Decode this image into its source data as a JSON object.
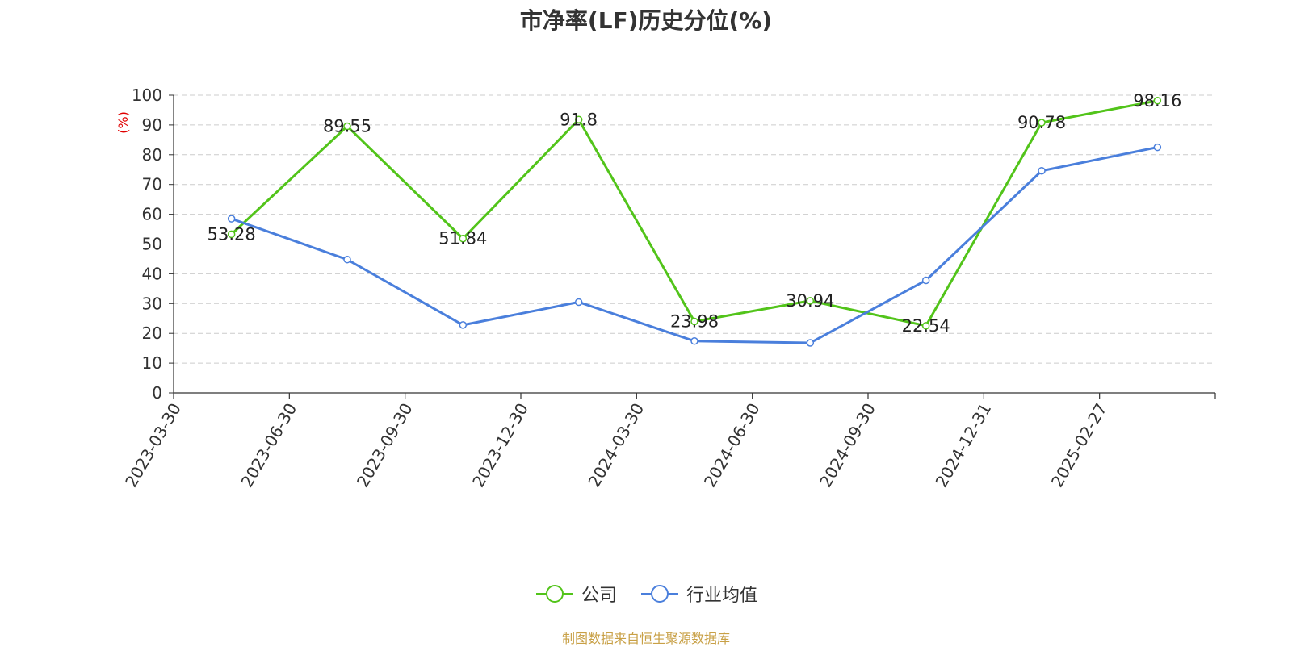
{
  "chart_data": {
    "type": "line",
    "title": "市净率(LF)历史分位(%)",
    "ylabel": "(%)",
    "ylim": [
      0,
      100
    ],
    "yticks": [
      0,
      10,
      20,
      30,
      40,
      50,
      60,
      70,
      80,
      90,
      100
    ],
    "categories": [
      "2023-03-30",
      "2023-06-30",
      "2023-09-30",
      "2023-12-30",
      "2024-03-30",
      "2024-06-30",
      "2024-09-30",
      "2024-12-31",
      "2025-02-27"
    ],
    "series": [
      {
        "name": "公司",
        "color": "#52c41a",
        "values": [
          53.28,
          89.55,
          51.84,
          91.8,
          23.98,
          30.94,
          22.54,
          90.78,
          98.16
        ],
        "show_labels": true
      },
      {
        "name": "行业均值",
        "color": "#4a7fdc",
        "values": [
          58.5,
          44.8,
          22.8,
          30.5,
          17.4,
          16.8,
          37.8,
          74.6,
          82.5
        ],
        "show_labels": false
      }
    ],
    "grid": true,
    "legend": "bottom-center"
  },
  "source_text": "制图数据来自恒生聚源数据库",
  "source_color": "#c8a046",
  "ylabel_color": "#e00000"
}
